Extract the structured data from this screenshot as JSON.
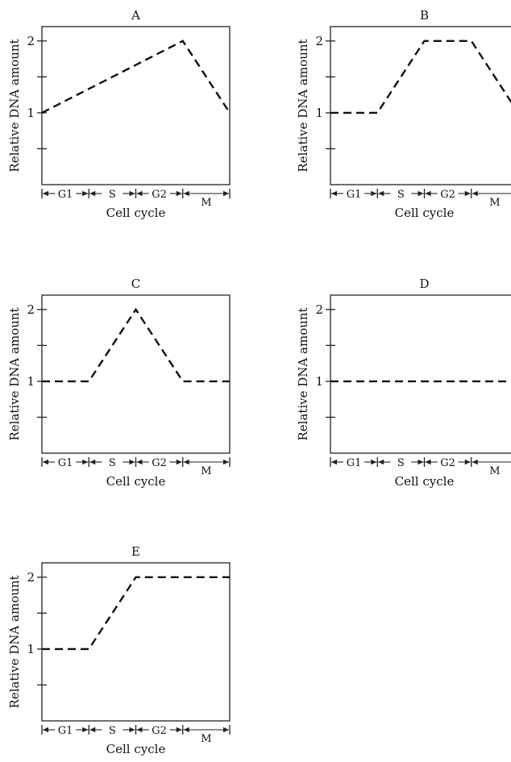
{
  "chart_data": [
    {
      "type": "line",
      "title": "A",
      "ylabel": "Relative DNA amount",
      "xlabel": "Cell cycle",
      "phases": [
        "G1",
        "S",
        "G2",
        "M"
      ],
      "yticks": [
        1,
        2
      ],
      "ylim": [
        0,
        2.2
      ],
      "x": [
        0,
        3,
        4
      ],
      "y": [
        1,
        2,
        1
      ]
    },
    {
      "type": "line",
      "title": "B",
      "ylabel": "Relative DNA amount",
      "xlabel": "Cell cycle",
      "phases": [
        "G1",
        "S",
        "G2",
        "M"
      ],
      "yticks": [
        1,
        2
      ],
      "ylim": [
        0,
        2.2
      ],
      "x": [
        0,
        1,
        2,
        3,
        4
      ],
      "y": [
        1,
        1,
        2,
        2,
        1
      ]
    },
    {
      "type": "line",
      "title": "C",
      "ylabel": "Relative DNA amount",
      "xlabel": "Cell cycle",
      "phases": [
        "G1",
        "S",
        "G2",
        "M"
      ],
      "yticks": [
        1,
        2
      ],
      "ylim": [
        0,
        2.2
      ],
      "x": [
        0,
        1,
        2,
        3,
        4
      ],
      "y": [
        1,
        1,
        2,
        1,
        1
      ]
    },
    {
      "type": "line",
      "title": "D",
      "ylabel": "Relative DNA amount",
      "xlabel": "Cell cycle",
      "phases": [
        "G1",
        "S",
        "G2",
        "M"
      ],
      "yticks": [
        1,
        2
      ],
      "ylim": [
        0,
        2.2
      ],
      "x": [
        0,
        4
      ],
      "y": [
        1,
        1
      ]
    },
    {
      "type": "line",
      "title": "E",
      "ylabel": "Relative DNA amount",
      "xlabel": "Cell cycle",
      "phases": [
        "G1",
        "S",
        "G2",
        "M"
      ],
      "yticks": [
        1,
        2
      ],
      "ylim": [
        0,
        2.2
      ],
      "x": [
        0,
        1,
        2,
        3,
        4
      ],
      "y": [
        1,
        1,
        2,
        2,
        2
      ]
    }
  ]
}
